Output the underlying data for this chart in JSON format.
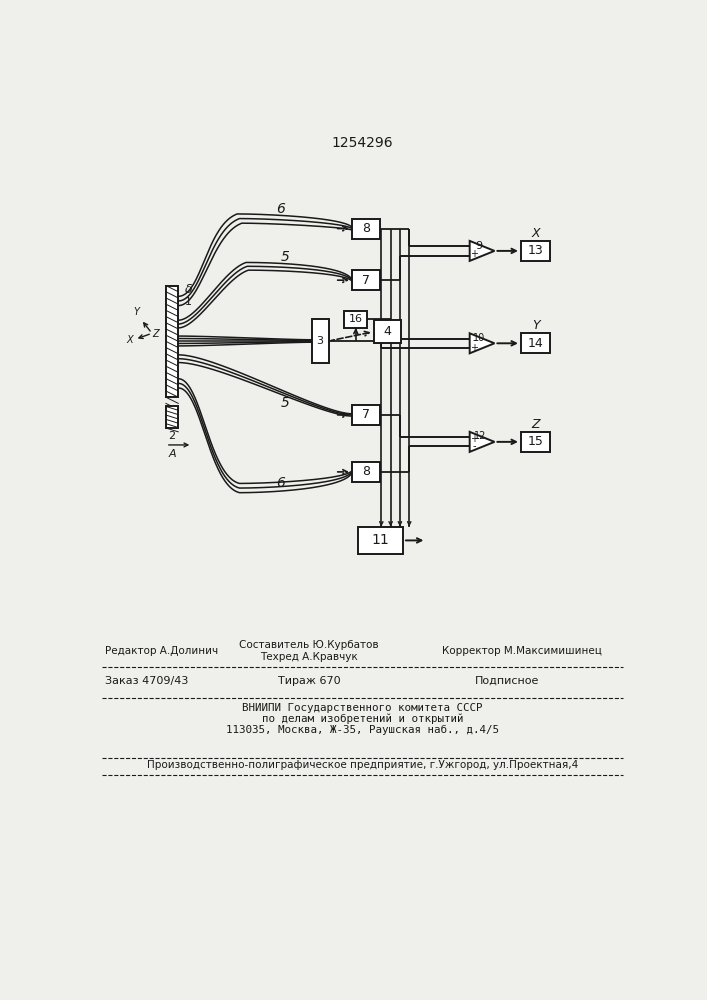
{
  "title": "1254296",
  "bg_color": "#efefeb",
  "line_color": "#1a1a1a",
  "footer_line1_left": "Редактор А.Долинич",
  "footer_line1_center1": "Составитель Ю.Курбатов",
  "footer_line1_center2": "Техред А.Кравчук",
  "footer_line1_right": "Корректор М.Максимишинец",
  "footer_line2_col1": "Заказ 4709/43",
  "footer_line2_col2": "Тираж 670",
  "footer_line2_col3": "Подписное",
  "footer_line3a": "ВНИИПИ Государственного комитета СССР",
  "footer_line3b": "по делам изобретений и открытий",
  "footer_line3c": "113035, Москва, Ж-35, Раушская наб., д.4/5",
  "footer_line4": "Производственно-полиграфическое предприятие, г.Ужгород, ул.Проектная,4"
}
